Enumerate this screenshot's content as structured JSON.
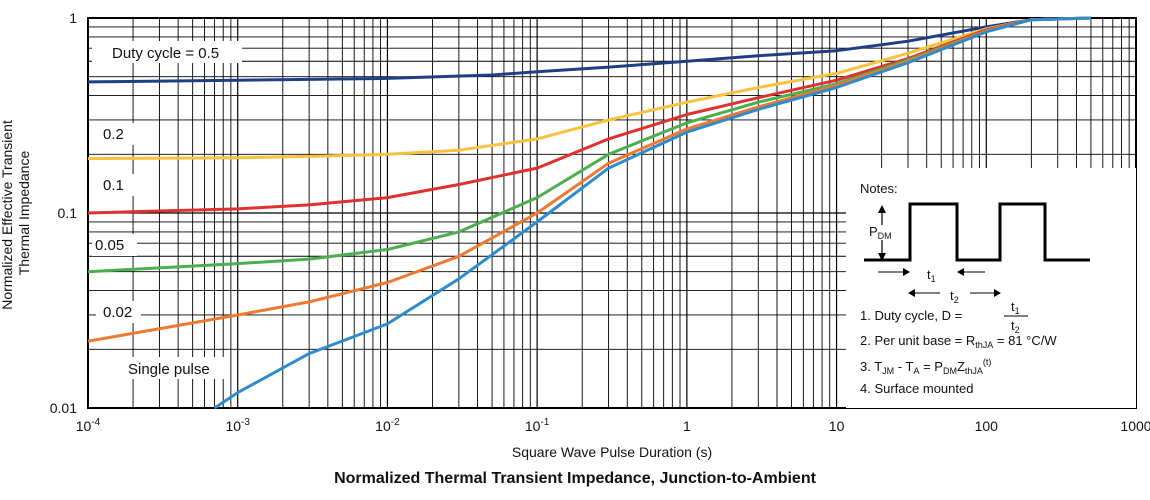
{
  "chart_data": {
    "type": "line",
    "title": "Normalized Thermal Transient Impedance, Junction-to-Ambient",
    "xlabel": "Square Wave Pulse Duration (s)",
    "ylabel": "Normalized Effective Transient Thermal Impedance",
    "x_scale": "log",
    "y_scale": "log",
    "xlim": [
      0.0001,
      1000
    ],
    "ylim": [
      0.01,
      1
    ],
    "grid": true,
    "x_ticks": [
      {
        "value": 0.0001,
        "base": "10",
        "exp": "-4"
      },
      {
        "value": 0.001,
        "base": "10",
        "exp": "-3"
      },
      {
        "value": 0.01,
        "base": "10",
        "exp": "-2"
      },
      {
        "value": 0.1,
        "base": "10",
        "exp": "-1"
      },
      {
        "value": 1,
        "base": "1",
        "exp": ""
      },
      {
        "value": 10,
        "base": "10",
        "exp": ""
      },
      {
        "value": 100,
        "base": "100",
        "exp": ""
      },
      {
        "value": 1000,
        "base": "1000",
        "exp": ""
      }
    ],
    "y_ticks": [
      {
        "value": 0.01,
        "label": "0.01"
      },
      {
        "value": 0.1,
        "label": "0.1"
      },
      {
        "value": 1,
        "label": "1"
      }
    ],
    "series": [
      {
        "name": "Duty cycle = 0.5",
        "color": "#1f3f85",
        "x": [
          0.0001,
          0.001,
          0.01,
          0.05,
          0.1,
          0.3,
          1,
          3,
          10,
          30,
          100,
          200,
          500
        ],
        "y": [
          0.47,
          0.48,
          0.49,
          0.51,
          0.53,
          0.56,
          0.6,
          0.64,
          0.68,
          0.76,
          0.9,
          0.98,
          1.0
        ]
      },
      {
        "name": "0.2",
        "color": "#f9c23c",
        "x": [
          0.0001,
          0.001,
          0.003,
          0.01,
          0.03,
          0.1,
          0.3,
          1,
          3,
          10,
          30,
          100,
          200,
          500
        ],
        "y": [
          0.19,
          0.192,
          0.195,
          0.2,
          0.21,
          0.24,
          0.3,
          0.37,
          0.44,
          0.52,
          0.66,
          0.88,
          0.98,
          1.0
        ]
      },
      {
        "name": "0.1",
        "color": "#e03030",
        "x": [
          0.0001,
          0.001,
          0.003,
          0.01,
          0.03,
          0.1,
          0.3,
          1,
          3,
          10,
          30,
          100,
          200,
          500
        ],
        "y": [
          0.1,
          0.105,
          0.11,
          0.12,
          0.14,
          0.17,
          0.24,
          0.32,
          0.39,
          0.48,
          0.62,
          0.87,
          0.98,
          1.0
        ]
      },
      {
        "name": "0.05",
        "color": "#4cae4c",
        "x": [
          0.0001,
          0.001,
          0.003,
          0.01,
          0.03,
          0.1,
          0.3,
          1,
          3,
          10,
          30,
          100,
          200,
          500
        ],
        "y": [
          0.05,
          0.055,
          0.058,
          0.065,
          0.08,
          0.12,
          0.2,
          0.29,
          0.37,
          0.46,
          0.61,
          0.86,
          0.98,
          1.0
        ]
      },
      {
        "name": "0.02",
        "color": "#f07830",
        "x": [
          0.0001,
          0.001,
          0.003,
          0.01,
          0.03,
          0.1,
          0.3,
          1,
          3,
          10,
          30,
          100,
          200,
          500
        ],
        "y": [
          0.022,
          0.03,
          0.035,
          0.044,
          0.06,
          0.1,
          0.18,
          0.27,
          0.35,
          0.45,
          0.6,
          0.86,
          0.98,
          1.0
        ]
      },
      {
        "name": "Single pulse",
        "color": "#2f8ccc",
        "x": [
          0.0007,
          0.001,
          0.003,
          0.01,
          0.03,
          0.1,
          0.3,
          1,
          3,
          10,
          30,
          100,
          200,
          500
        ],
        "y": [
          0.01,
          0.012,
          0.019,
          0.027,
          0.046,
          0.09,
          0.17,
          0.26,
          0.34,
          0.44,
          0.59,
          0.85,
          0.98,
          1.0
        ]
      }
    ],
    "series_labels": [
      "Duty cycle = 0.5",
      "0.2",
      "0.1",
      "0.05",
      "0.02",
      "Single pulse"
    ],
    "notes": {
      "heading": "Notes:",
      "pdm": "P",
      "pdm_sub": "DM",
      "t1": "t",
      "t1_sub": "1",
      "t2": "t",
      "t2_sub": "2",
      "note1_prefix": "1. Duty cycle, D =",
      "note1_num": "t",
      "note1_num_sub": "1",
      "note1_den": "t",
      "note1_den_sub": "2",
      "note2_a": "2. Per unit base = R",
      "note2_sub": "thJA",
      "note2_b": " = 81 °C/W",
      "note3_a": "3. T",
      "note3_sub1": "JM",
      "note3_b": " - T",
      "note3_sub2": "A",
      "note3_c": " = P",
      "note3_sub3": "DM",
      "note3_d": "Z",
      "note3_sub4": "thJA",
      "note3_sup": "(t)",
      "note4": "4. Surface mounted"
    }
  }
}
